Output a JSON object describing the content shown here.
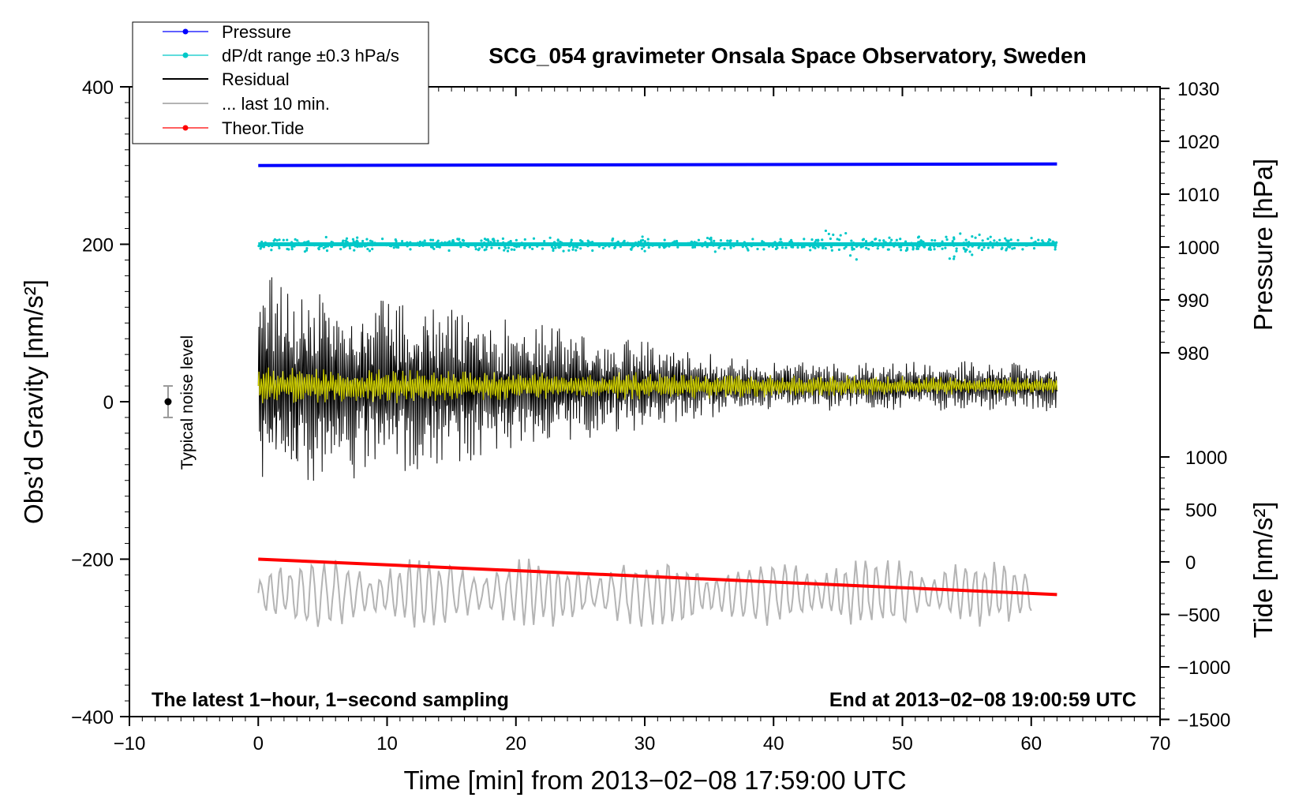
{
  "chart_data": {
    "type": "line",
    "title": "SCG_054 gravimeter Onsala Space Observatory, Sweden",
    "xlabel": "Time [min] from 2013−02−08 17:59:00 UTC",
    "ylabel_left": "Obs’d Gravity [nm/s²]",
    "ylabel_right_top": "Pressure [hPa]",
    "ylabel_right_bottom": "Tide [nm/s²]",
    "xlim": [
      -10,
      70
    ],
    "ylim_left": [
      -400,
      400
    ],
    "x_ticks": [
      "−10",
      "0",
      "10",
      "20",
      "30",
      "40",
      "50",
      "60",
      "70"
    ],
    "y_left_ticks": [
      "400",
      "200",
      "0",
      "−200",
      "−400"
    ],
    "pressure_ticks": [
      "1030",
      "1020",
      "1010",
      "1000",
      "990",
      "980"
    ],
    "tide_ticks": [
      "1000",
      "500",
      "0",
      "−500",
      "−1000",
      "−1500"
    ],
    "note_left": "The latest 1−hour, 1−second sampling",
    "note_right": "End at 2013−02−08 19:00:59 UTC",
    "noise_label": "Typical noise level",
    "noise_bar": {
      "center": 0,
      "half_range": 20,
      "x": -7
    },
    "legend": [
      {
        "label": "Pressure",
        "color": "#0000ff",
        "marker": true
      },
      {
        "label": "dP/dt range ±0.3 hPa/s",
        "color": "#00c8c8",
        "marker": true
      },
      {
        "label": "Residual",
        "color": "#000000",
        "marker": false
      },
      {
        "label": "... last 10 min.",
        "color": "#b4b4b4",
        "marker": false
      },
      {
        "label": "Theor.Tide",
        "color": "#ff0000",
        "marker": true
      }
    ],
    "series": [
      {
        "name": "Pressure",
        "color": "#0000ff",
        "x_range": [
          0,
          62
        ],
        "y_start": 300,
        "y_end": 302
      },
      {
        "name": "dP/dt range ±0.3 hPa/s",
        "color": "#00c8c8",
        "x_range": [
          0,
          62
        ],
        "y_center": 200,
        "spread": 8
      },
      {
        "name": "Residual",
        "color": "#000000",
        "x_range": [
          0,
          62
        ],
        "y_center": 20,
        "amp_start": 130,
        "amp_end": 30
      },
      {
        "name": "Residual (smoothed)",
        "color": "#c8c800",
        "x_range": [
          0,
          62
        ],
        "y_center": 20,
        "amp": 22
      },
      {
        "name": "... last 10 min.",
        "color": "#b4b4b4",
        "x_range": [
          0,
          60
        ],
        "y_center": -243,
        "amp": 40
      },
      {
        "name": "Theor.Tide",
        "color": "#ff0000",
        "x_range": [
          0,
          62
        ],
        "y_start": -200,
        "y_end": -245
      }
    ]
  }
}
